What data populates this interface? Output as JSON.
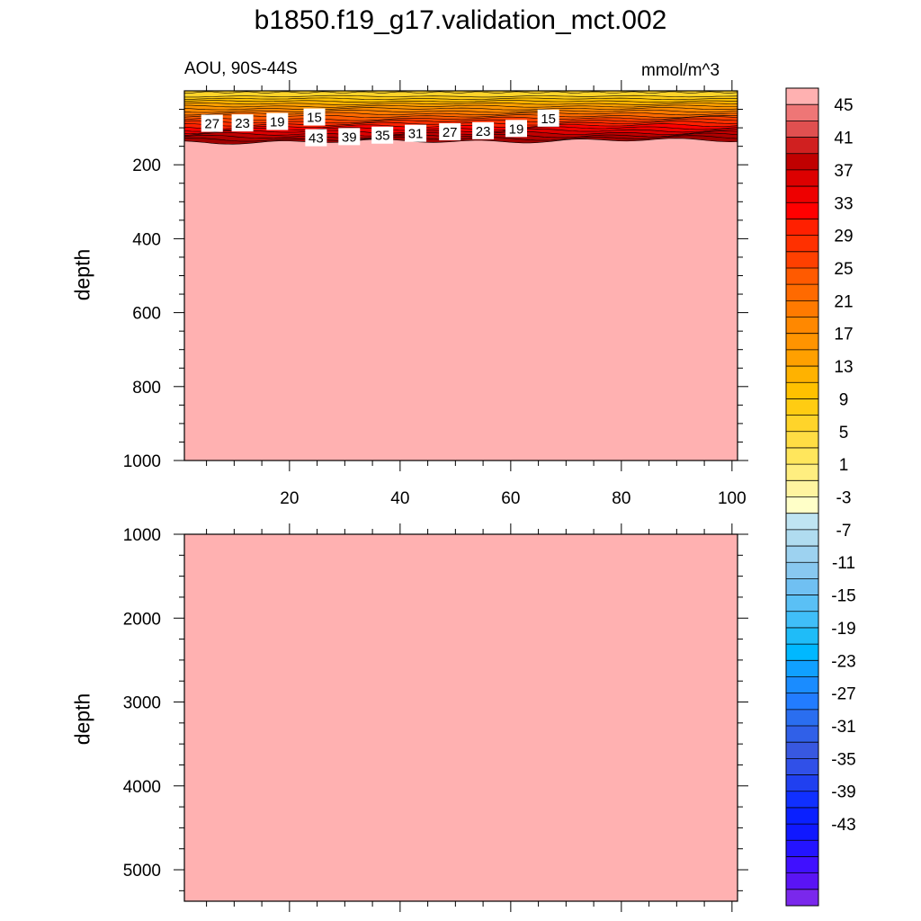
{
  "title": "b1850.f19_g17.validation_mct.002",
  "subtitle_left": "AOU, 90S-44S",
  "subtitle_right": "mmol/m^3",
  "chart_data": [
    {
      "type": "heatmap",
      "panel": "upper",
      "ylabel": "depth",
      "xlim": [
        1,
        101
      ],
      "ylim": [
        1000,
        0
      ],
      "x_ticks": [
        20,
        40,
        60,
        80,
        100
      ],
      "y_ticks": [
        200,
        400,
        600,
        800,
        1000
      ],
      "background_value": 45,
      "contour_labels": [
        {
          "text": "27",
          "x": 6,
          "depth": 89
        },
        {
          "text": "23",
          "x": 11.5,
          "depth": 88
        },
        {
          "text": "19",
          "x": 17.8,
          "depth": 84
        },
        {
          "text": "15",
          "x": 24.5,
          "depth": 72
        },
        {
          "text": "43",
          "x": 24.8,
          "depth": 128
        },
        {
          "text": "39",
          "x": 30.8,
          "depth": 125
        },
        {
          "text": "35",
          "x": 36.8,
          "depth": 121
        },
        {
          "text": "31",
          "x": 42.8,
          "depth": 116
        },
        {
          "text": "27",
          "x": 49,
          "depth": 112
        },
        {
          "text": "23",
          "x": 55,
          "depth": 109
        },
        {
          "text": "19",
          "x": 61,
          "depth": 103
        },
        {
          "text": "15",
          "x": 66.8,
          "depth": 75
        }
      ]
    },
    {
      "type": "heatmap",
      "panel": "lower",
      "ylabel": "depth",
      "ylim": [
        5375,
        1000
      ],
      "y_ticks": [
        1000,
        2000,
        3000,
        4000,
        5000
      ],
      "background_value": 45
    }
  ],
  "colorbar": {
    "labels": [
      "45",
      "41",
      "37",
      "33",
      "29",
      "25",
      "21",
      "17",
      "13",
      "9",
      "5",
      "1",
      "-3",
      "-7",
      "-11",
      "-15",
      "-19",
      "-23",
      "-27",
      "-31",
      "-35",
      "-39",
      "-43"
    ],
    "colors": [
      "#ffb1b1",
      "#ee7676",
      "#e05050",
      "#d02020",
      "#c00000",
      "#dd0000",
      "#ee0000",
      "#ff0000",
      "#ff2000",
      "#ff3000",
      "#ff4000",
      "#ff5a00",
      "#ff6a00",
      "#ff7a00",
      "#ff8800",
      "#ff9400",
      "#ffa000",
      "#ffb200",
      "#ffc100",
      "#ffcc12",
      "#ffd42a",
      "#ffdd44",
      "#ffe65c",
      "#ffee80",
      "#fff4a0",
      "#ffffc8",
      "#bfe4f2",
      "#b0dcf0",
      "#9dd2f0",
      "#88c8f0",
      "#70c0f2",
      "#5ac0f5",
      "#40bef8",
      "#1fbcf8",
      "#00b8ff",
      "#10a0ff",
      "#1a8cff",
      "#227cff",
      "#2a6ef0",
      "#3060e8",
      "#3858e0",
      "#3050e8",
      "#2040f0",
      "#1030ff",
      "#0a20ff",
      "#1018ff",
      "#2414ff",
      "#4010ff",
      "#5a14f4",
      "#7a28ec"
    ]
  }
}
